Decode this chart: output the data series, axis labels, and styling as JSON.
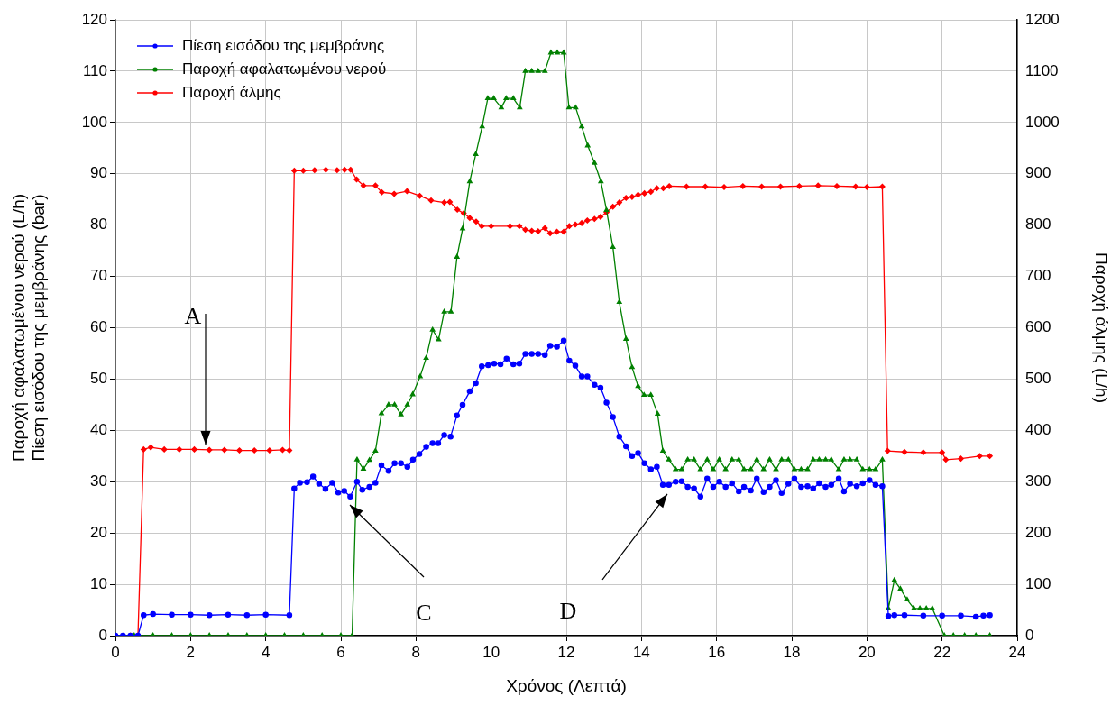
{
  "chart_data": {
    "type": "line",
    "xlabel": "Χρόνος (Λεπτά)",
    "ylabel": "Παροχή αφαλατωμένου νερού (L/h)\nΠίεση εισόδου της μεμβράνης (bar)",
    "y2label": "Παροχή άλμης (L/h)",
    "xlim": [
      0,
      24
    ],
    "xticks": [
      0,
      2,
      4,
      6,
      8,
      10,
      12,
      14,
      16,
      18,
      20,
      22,
      24
    ],
    "ylim": [
      0,
      120
    ],
    "yticks": [
      0,
      10,
      20,
      30,
      40,
      50,
      60,
      70,
      80,
      90,
      100,
      110,
      120
    ],
    "y2lim": [
      0,
      1200
    ],
    "y2ticks": [
      0,
      100,
      200,
      300,
      400,
      500,
      600,
      700,
      800,
      900,
      1000,
      1100,
      1200
    ],
    "grid": true,
    "legend": "top left",
    "line_style": "solid",
    "annotations": [
      "A",
      "C",
      "D"
    ],
    "series": [
      {
        "name": "Πίεση εισόδου της μεμβράνης",
        "color": "#0000ff",
        "marker": "circle",
        "x": [
          0,
          0.2,
          0.4,
          0.6,
          0.75,
          1.0,
          1.5,
          2.0,
          2.5,
          3.0,
          3.5,
          4.0,
          4.63,
          4.76,
          4.91,
          5.1,
          5.26,
          5.42,
          5.59,
          5.77,
          5.93,
          6.09,
          6.25,
          6.43,
          6.57,
          6.76,
          6.92,
          7.08,
          7.27,
          7.43,
          7.6,
          7.77,
          7.92,
          8.09,
          8.27,
          8.44,
          8.59,
          8.75,
          8.92,
          9.09,
          9.24,
          9.43,
          9.59,
          9.75,
          9.92,
          10.08,
          10.25,
          10.41,
          10.59,
          10.75,
          10.91,
          11.08,
          11.25,
          11.43,
          11.57,
          11.75,
          11.93,
          12.08,
          12.24,
          12.41,
          12.56,
          12.75,
          12.91,
          13.07,
          13.24,
          13.41,
          13.59,
          13.75,
          13.91,
          14.08,
          14.25,
          14.41,
          14.57,
          14.73,
          14.91,
          15.07,
          15.23,
          15.4,
          15.57,
          15.75,
          15.91,
          16.07,
          16.24,
          16.41,
          16.59,
          16.73,
          16.91,
          17.07,
          17.25,
          17.41,
          17.58,
          17.73,
          17.91,
          18.07,
          18.25,
          18.42,
          18.57,
          18.73,
          18.9,
          19.05,
          19.25,
          19.39,
          19.55,
          19.73,
          19.89,
          20.07,
          20.23,
          20.41,
          20.57,
          20.73,
          21.0,
          21.5,
          22.0,
          22.5,
          22.9,
          23.1,
          23.27
        ],
        "values": [
          0,
          0,
          0,
          0,
          4.0,
          4.2,
          4.1,
          4.1,
          4.0,
          4.1,
          4.0,
          4.1,
          4.0,
          28.7,
          29.8,
          29.9,
          31,
          29.6,
          28.6,
          29.8,
          27.9,
          28.2,
          27.1,
          30,
          28.4,
          29,
          29.8,
          33.2,
          32.1,
          33.6,
          33.6,
          32.9,
          34.3,
          35.4,
          36.8,
          37.5,
          37.5,
          39.1,
          38.8,
          42.9,
          45,
          47.6,
          49.2,
          52.5,
          52.7,
          53,
          52.9,
          54,
          52.9,
          53,
          54.9,
          54.9,
          54.9,
          54.7,
          56.5,
          56.3,
          57.5,
          53.6,
          52.6,
          50.5,
          50.5,
          48.9,
          48.3,
          45.4,
          42.6,
          38.8,
          36.9,
          35,
          35.6,
          33.6,
          32.4,
          32.9,
          29.4,
          29.4,
          30,
          30.1,
          29,
          28.7,
          27.1,
          30.6,
          29,
          30,
          29,
          29.7,
          28.1,
          29,
          28.3,
          30.6,
          28,
          29,
          30.3,
          27.8,
          29.6,
          30.6,
          29,
          29.1,
          28.7,
          29.7,
          29,
          29.4,
          30.6,
          28.1,
          29.6,
          29.1,
          29.7,
          30.3,
          29.4,
          29.1,
          3.8,
          4.0,
          4.0,
          3.9,
          3.9,
          3.9,
          3.7,
          3.9,
          4.0
        ]
      },
      {
        "name": "Παροχή αφαλατωμένου νερού",
        "color": "#008000",
        "marker": "triangle",
        "x": [
          0,
          0.5,
          1,
          1.5,
          2,
          2.5,
          3,
          3.5,
          4,
          4.5,
          5,
          5.5,
          6,
          6.3,
          6.43,
          6.6,
          6.76,
          6.92,
          7.08,
          7.27,
          7.43,
          7.6,
          7.77,
          7.91,
          8.11,
          8.27,
          8.44,
          8.6,
          8.75,
          8.93,
          9.09,
          9.24,
          9.43,
          9.59,
          9.76,
          9.91,
          10.07,
          10.27,
          10.4,
          10.59,
          10.76,
          10.91,
          11.08,
          11.25,
          11.43,
          11.59,
          11.76,
          11.93,
          12.07,
          12.25,
          12.41,
          12.57,
          12.75,
          12.92,
          13.07,
          13.24,
          13.41,
          13.59,
          13.75,
          13.91,
          14.07,
          14.25,
          14.43,
          14.57,
          14.73,
          14.91,
          15.07,
          15.23,
          15.4,
          15.57,
          15.75,
          15.91,
          16.07,
          16.24,
          16.41,
          16.59,
          16.73,
          16.91,
          17.07,
          17.25,
          17.41,
          17.58,
          17.73,
          17.91,
          18.07,
          18.25,
          18.42,
          18.57,
          18.73,
          18.9,
          19.05,
          19.25,
          19.39,
          19.55,
          19.73,
          19.89,
          20.07,
          20.23,
          20.41,
          20.57,
          20.73,
          20.89,
          21.07,
          21.25,
          21.41,
          21.58,
          21.74,
          22.06,
          22.3,
          22.6,
          22.9,
          23.27
        ],
        "values": [
          0,
          0,
          0,
          0,
          0,
          0,
          0,
          0,
          0,
          0,
          0,
          0,
          0,
          0,
          34.3,
          32.5,
          34.2,
          36,
          43.3,
          45,
          45,
          43.1,
          45,
          47,
          50.5,
          54.1,
          59.6,
          57.7,
          63.1,
          63.1,
          73.8,
          79.3,
          88.5,
          93.8,
          99.2,
          104.7,
          104.7,
          102.9,
          104.7,
          104.7,
          102.9,
          110,
          110,
          110,
          110,
          113.6,
          113.6,
          113.6,
          102.9,
          102.9,
          99.2,
          95.5,
          92.1,
          88.5,
          82.9,
          75.7,
          65,
          57.8,
          52.3,
          48.6,
          46.9,
          46.9,
          43.2,
          36,
          34.3,
          32.4,
          32.4,
          34.3,
          34.3,
          32.4,
          34.3,
          32.4,
          34.3,
          32.4,
          34.3,
          34.3,
          32.4,
          32.4,
          34.3,
          32.4,
          34.3,
          32.4,
          34.3,
          34.3,
          32.4,
          32.4,
          32.4,
          34.3,
          34.3,
          34.3,
          34.3,
          32.4,
          34.3,
          34.3,
          34.3,
          32.4,
          32.4,
          32.4,
          34.3,
          5.3,
          10.8,
          9.1,
          7.0,
          5.3,
          5.3,
          5.3,
          5.3,
          0,
          0,
          0,
          0,
          0
        ]
      },
      {
        "name": "Παροχή άλμης",
        "color": "#ff0000",
        "marker": "diamond",
        "axis": "y2",
        "x": [
          0.4,
          0.6,
          0.75,
          0.94,
          1.3,
          1.7,
          2.1,
          2.5,
          2.9,
          3.3,
          3.7,
          4.1,
          4.45,
          4.63,
          4.76,
          5.0,
          5.3,
          5.6,
          5.9,
          6.1,
          6.26,
          6.42,
          6.6,
          6.92,
          7.09,
          7.42,
          7.76,
          8.1,
          8.4,
          8.75,
          8.9,
          9.1,
          9.27,
          9.43,
          9.6,
          9.75,
          10.0,
          10.5,
          10.75,
          10.91,
          11.08,
          11.25,
          11.43,
          11.57,
          11.75,
          11.93,
          12.08,
          12.24,
          12.41,
          12.56,
          12.75,
          12.91,
          13.07,
          13.24,
          13.41,
          13.59,
          13.75,
          13.91,
          14.08,
          14.25,
          14.41,
          14.58,
          14.74,
          15.2,
          15.7,
          16.2,
          16.7,
          17.2,
          17.7,
          18.2,
          18.7,
          19.2,
          19.7,
          20.0,
          20.41,
          20.55,
          21.0,
          21.5,
          22.0,
          22.1,
          22.5,
          23.0,
          23.27
        ],
        "values": [
          0,
          0,
          363,
          367,
          363,
          363,
          363,
          362,
          362,
          361,
          361,
          361,
          362,
          361,
          906,
          906,
          907,
          908,
          907,
          908,
          908,
          889,
          877,
          877,
          864,
          861,
          866,
          857,
          848,
          844,
          845,
          830,
          823,
          814,
          807,
          798,
          798,
          798,
          798,
          791,
          789,
          788,
          794,
          784,
          787,
          787,
          798,
          801,
          804,
          809,
          812,
          816,
          825,
          836,
          844,
          853,
          855,
          859,
          862,
          865,
          872,
          872,
          876,
          875,
          875,
          874,
          876,
          875,
          875,
          876,
          877,
          876,
          875,
          874,
          875,
          360,
          358,
          357,
          357,
          343,
          345,
          350,
          350
        ]
      }
    ]
  }
}
